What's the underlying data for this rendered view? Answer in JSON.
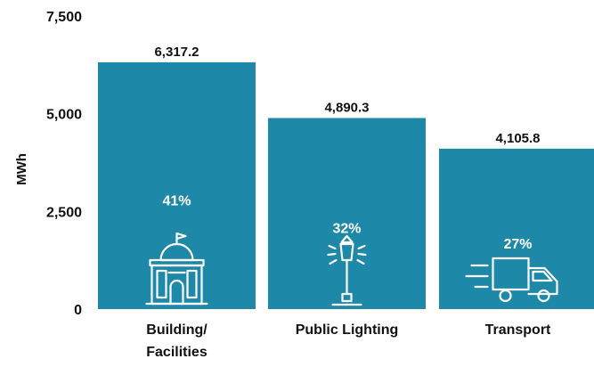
{
  "chart_data": {
    "type": "bar",
    "categories": [
      [
        "Building/",
        "Facilities"
      ],
      [
        "Public Lighting"
      ],
      [
        "Transport"
      ]
    ],
    "values": [
      6317.2,
      4890.3,
      4105.8
    ],
    "value_labels": [
      "6,317.2",
      "4,890.3",
      "4,105.8"
    ],
    "percent_labels": [
      "41%",
      "32%",
      "27%"
    ],
    "icons": [
      "building-icon",
      "street-lamp-icon",
      "delivery-truck-icon"
    ],
    "ylabel": "MWh",
    "ylim": [
      0,
      7500
    ],
    "yticks": [
      0,
      2500,
      5000,
      7500
    ],
    "ytick_labels": [
      "0",
      "2,500",
      "5,000",
      "7,500"
    ],
    "grid": false,
    "colors": {
      "bar": "#1e88a8",
      "bar_text": "#ffffff",
      "text": "#111111"
    }
  }
}
